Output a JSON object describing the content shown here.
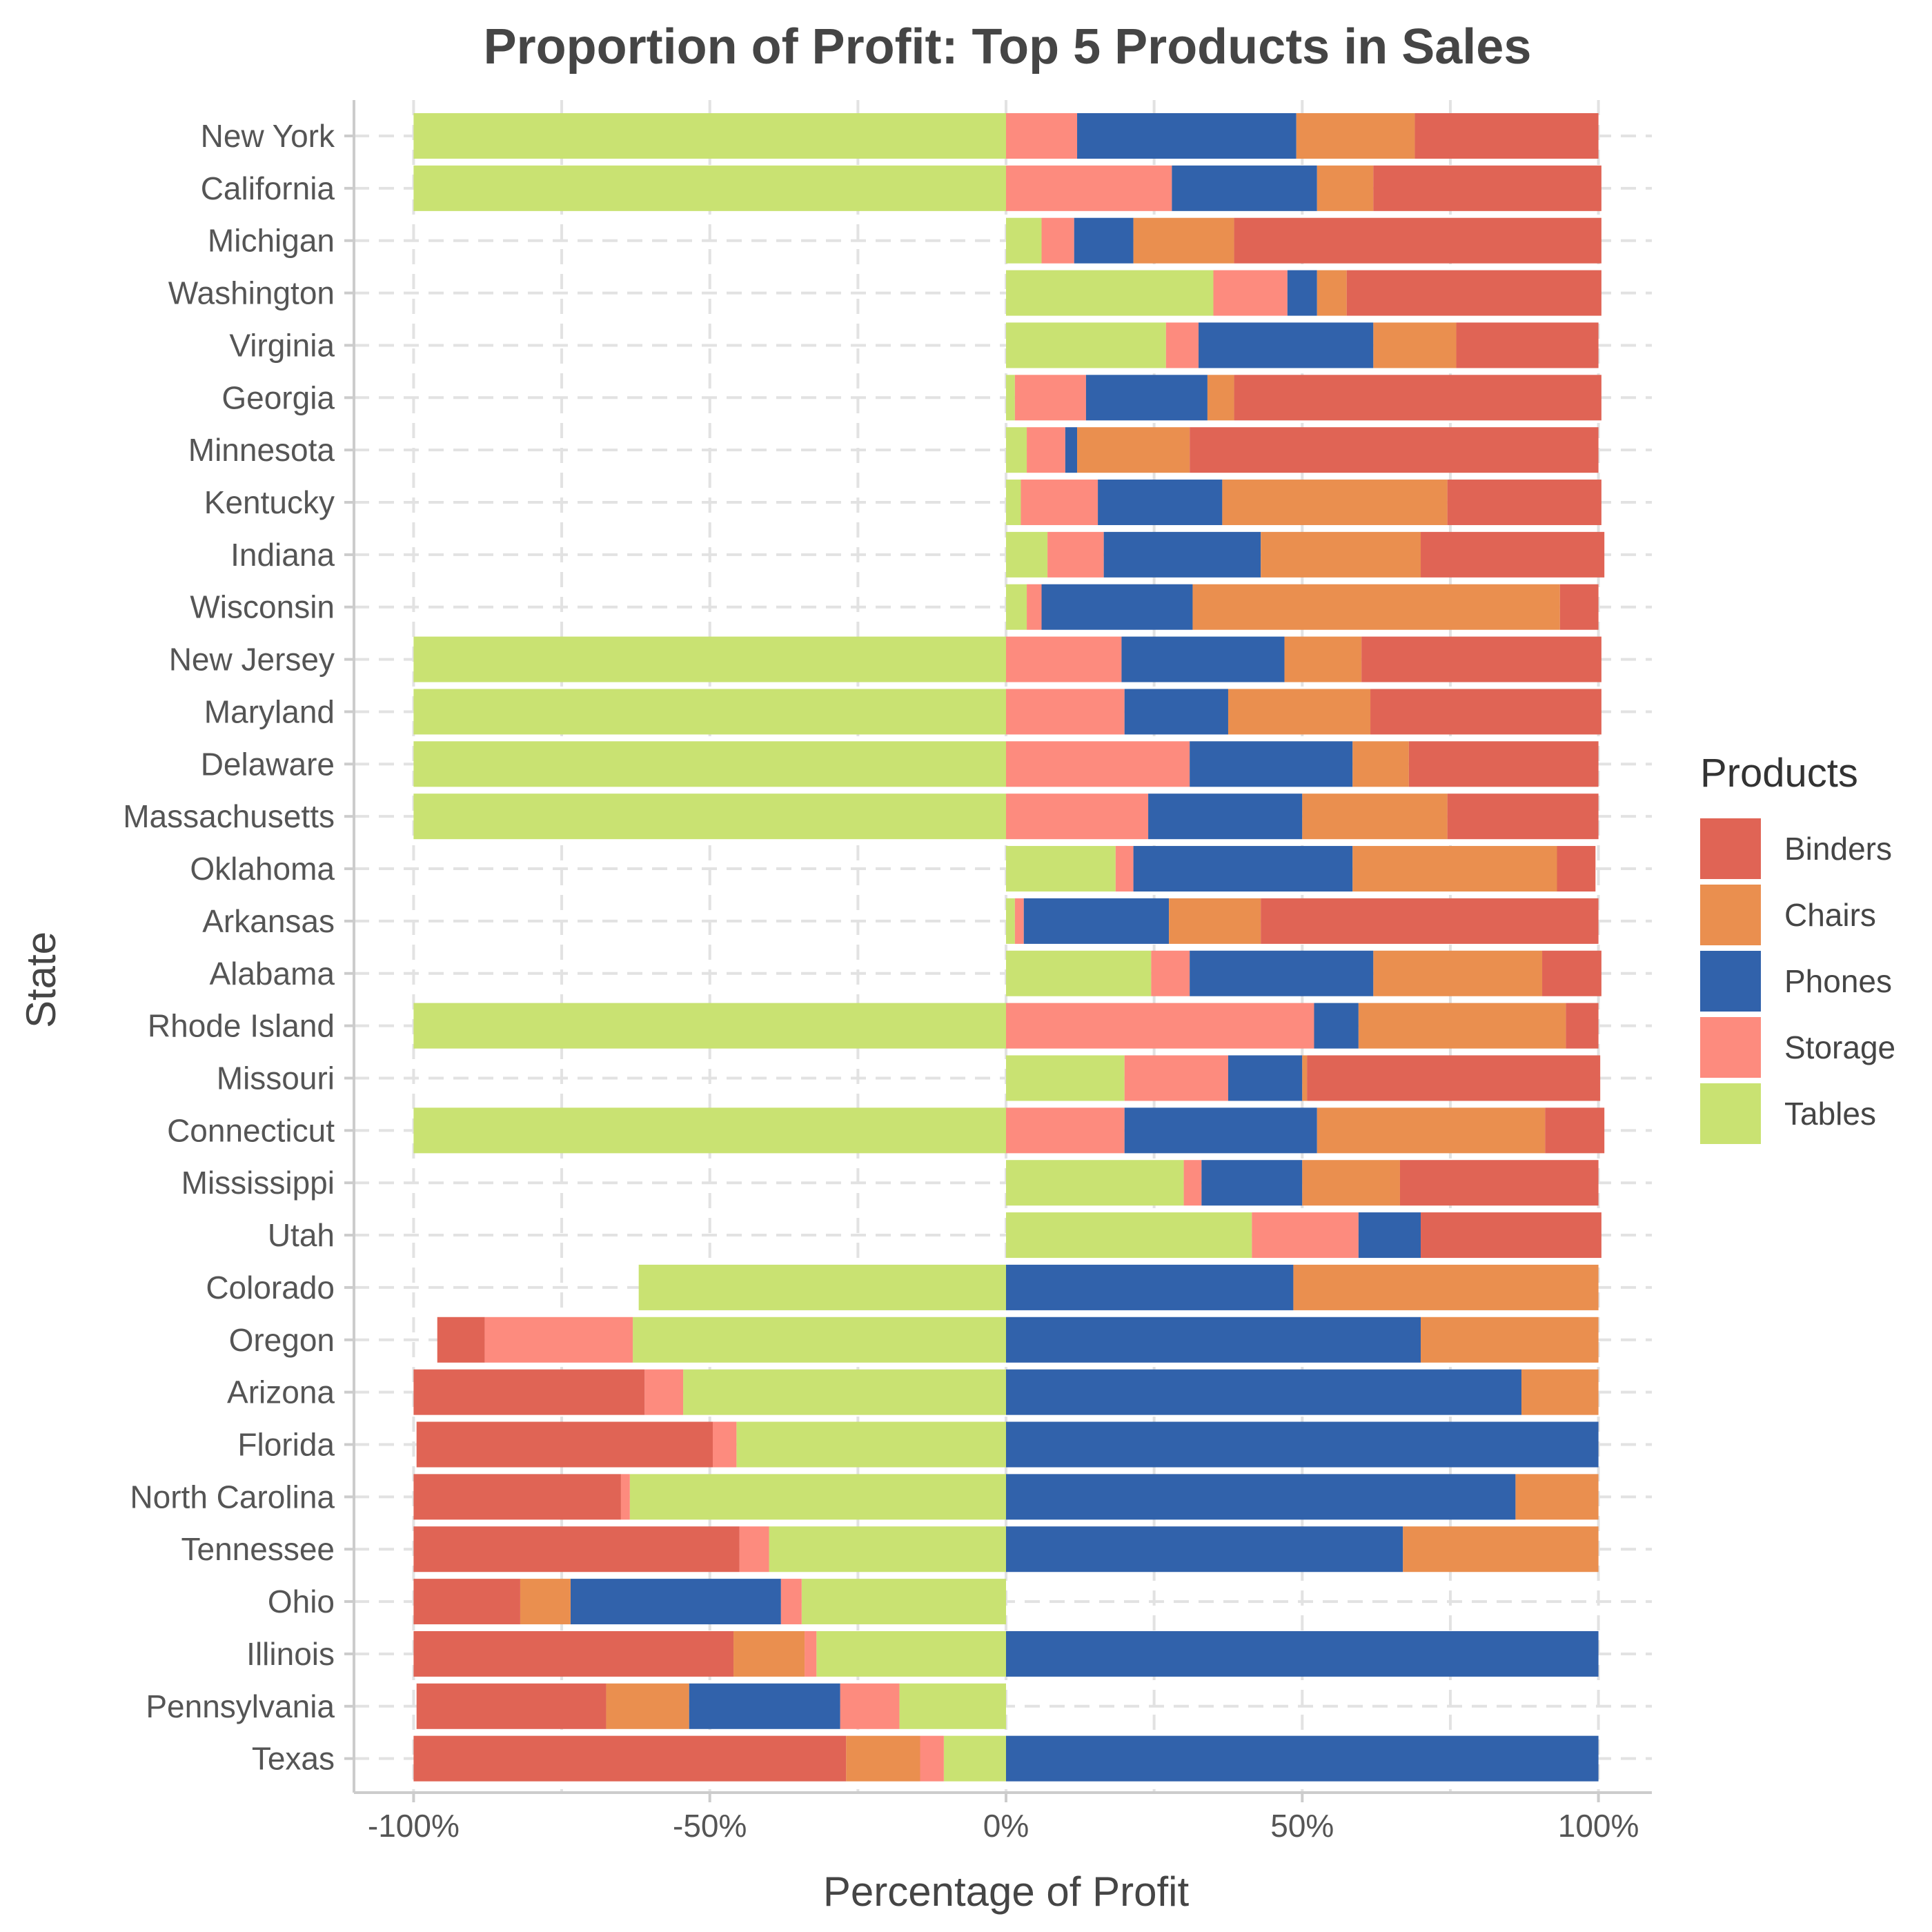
{
  "chart_data": {
    "type": "bar",
    "orientation": "horizontal",
    "stacked": true,
    "title": "Proportion of Profit: Top 5 Products in Sales",
    "xlabel": "Percentage of Profit",
    "ylabel": "State",
    "xlim": [
      -100,
      100
    ],
    "x_ticks": [
      -100,
      -50,
      0,
      50,
      100
    ],
    "x_tick_labels": [
      "-100%",
      "-50%",
      "0%",
      "50%",
      "100%"
    ],
    "grid": true,
    "legend": {
      "title": "Products",
      "position": "right"
    },
    "products": [
      "Binders",
      "Chairs",
      "Phones",
      "Storage",
      "Tables"
    ],
    "colors": {
      "Binders": "#e06455",
      "Chairs": "#ea8f4f",
      "Phones": "#3162ab",
      "Storage": "#fd8b7e",
      "Tables": "#c9e272"
    },
    "states": [
      "New York",
      "California",
      "Michigan",
      "Washington",
      "Virginia",
      "Georgia",
      "Minnesota",
      "Kentucky",
      "Indiana",
      "Wisconsin",
      "New Jersey",
      "Maryland",
      "Delaware",
      "Massachusetts",
      "Oklahoma",
      "Arkansas",
      "Alabama",
      "Rhode Island",
      "Missouri",
      "Connecticut",
      "Mississippi",
      "Utah",
      "Colorado",
      "Oregon",
      "Arizona",
      "Florida",
      "North Carolina",
      "Tennessee",
      "Ohio",
      "Illinois",
      "Pennsylvania",
      "Texas"
    ],
    "series": [
      {
        "name": "Binders",
        "values": [
          31,
          38.5,
          62,
          43,
          24,
          62,
          69,
          26,
          31,
          6.5,
          40.5,
          39,
          32,
          25.5,
          6.5,
          57,
          10,
          5.5,
          49.5,
          10,
          33.5,
          30.5,
          0,
          -8,
          -39,
          -50,
          -35,
          -55,
          -18,
          -54,
          -32,
          -73
        ]
      },
      {
        "name": "Chairs",
        "values": [
          20,
          9.5,
          17,
          5,
          14,
          4.5,
          19,
          38,
          27,
          62,
          13,
          24,
          9.5,
          24.5,
          34.5,
          15.5,
          28.5,
          35,
          0.8,
          38.5,
          16.5,
          0,
          51.5,
          30,
          13,
          0,
          14,
          33,
          -8.5,
          -12,
          -14,
          -12.5
        ]
      },
      {
        "name": "Phones",
        "values": [
          37,
          24.5,
          10,
          5,
          29.5,
          20.5,
          2,
          21,
          26.5,
          25.5,
          27.5,
          17.5,
          27.5,
          26,
          37,
          24.5,
          31,
          7.5,
          12.5,
          32.5,
          17,
          10.5,
          48.5,
          70,
          87,
          100,
          86,
          67,
          -35.5,
          100,
          -25.5,
          100
        ]
      },
      {
        "name": "Storage",
        "values": [
          12,
          28,
          5.5,
          12.5,
          5.5,
          12,
          6.5,
          13,
          9.5,
          2.5,
          19.5,
          20,
          31,
          24,
          3,
          1.5,
          6.5,
          52,
          17.5,
          20,
          3,
          18,
          0,
          -25,
          -6.5,
          -4,
          -1.5,
          -5,
          -3.5,
          -2,
          -10,
          -4
        ]
      },
      {
        "name": "Tables",
        "values": [
          -100,
          -100,
          6,
          35,
          27,
          1.5,
          3.5,
          2.5,
          7,
          3.5,
          -100,
          -100,
          -100,
          -100,
          18.5,
          1.5,
          24.5,
          -100,
          20,
          -100,
          30,
          41.5,
          -62,
          -63,
          -54.5,
          -45.5,
          -63.5,
          -40,
          -34.5,
          -32,
          -18,
          -10.5
        ]
      }
    ]
  }
}
